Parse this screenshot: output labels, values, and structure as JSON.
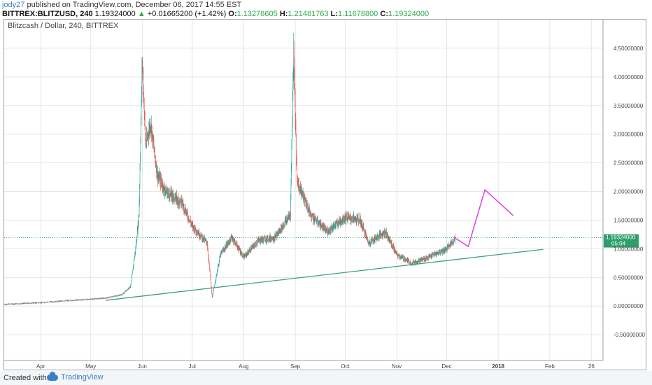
{
  "header": {
    "user": "jody27",
    "published": "published on TradingView.com, December 06, 2017 14:55 EST",
    "symbol": "BITTREX:BLITZUSD, 240",
    "last": "1.19324000",
    "arrow": "▲",
    "change": "+0.01665200 (+1.42%)",
    "o_label": "O:",
    "o_val": "1.13278605",
    "h_label": "H:",
    "h_val": "1.21481763",
    "l_label": "L:",
    "l_val": "1.11678800",
    "c_label": "C:",
    "c_val": "1.19324000"
  },
  "chart_title": "Blitzcash / Dollar, 240, BITTREX",
  "footer": {
    "created": "Created with",
    "brand": "TradingView",
    "brand_icon": "tradingview-cloud-icon"
  },
  "colors": {
    "up": "#26a69a",
    "down": "#e05a4f",
    "trendline": "#3f9e86",
    "projection": "#e23de0",
    "price_tag": "#2e9e6b",
    "grid": "#e6e6e6"
  },
  "chart_data": {
    "type": "candlestick",
    "title": "Blitzcash / Dollar, 240, BITTREX",
    "x_ticks": [
      "Apr",
      "May",
      "Jun",
      "Jul",
      "Aug",
      "Sep",
      "Oct",
      "Nov",
      "Dec",
      "2018",
      "Feb",
      "26"
    ],
    "y_ticks": [
      "4.50000000",
      "4.00000000",
      "3.50000000",
      "3.00000000",
      "2.50000000",
      "2.00000000",
      "1.50000000",
      "1.00000000",
      "0.50000000",
      "0.00000000",
      "-0.50000000"
    ],
    "ylim": [
      -0.95,
      5.0
    ],
    "last_price_label": "1.19324000",
    "countdown_label": "05:04",
    "last_price": 1.19324,
    "price_path": [
      [
        "2017-03-10",
        0.03
      ],
      [
        "2017-04-01",
        0.06
      ],
      [
        "2017-04-15",
        0.09
      ],
      [
        "2017-05-01",
        0.12
      ],
      [
        "2017-05-10",
        0.14
      ],
      [
        "2017-05-20",
        0.2
      ],
      [
        "2017-05-25",
        0.35
      ],
      [
        "2017-05-28",
        1.0
      ],
      [
        "2017-05-30",
        1.6
      ],
      [
        "2017-06-01",
        4.3
      ],
      [
        "2017-06-03",
        2.8
      ],
      [
        "2017-06-06",
        3.2
      ],
      [
        "2017-06-10",
        2.3
      ],
      [
        "2017-06-15",
        2.0
      ],
      [
        "2017-06-25",
        1.8
      ],
      [
        "2017-07-01",
        1.4
      ],
      [
        "2017-07-10",
        1.1
      ],
      [
        "2017-07-13",
        0.15
      ],
      [
        "2017-07-18",
        0.9
      ],
      [
        "2017-07-25",
        1.2
      ],
      [
        "2017-08-01",
        0.85
      ],
      [
        "2017-08-10",
        1.15
      ],
      [
        "2017-08-20",
        1.2
      ],
      [
        "2017-08-29",
        1.6
      ],
      [
        "2017-08-31",
        4.5
      ],
      [
        "2017-09-02",
        2.2
      ],
      [
        "2017-09-10",
        1.6
      ],
      [
        "2017-09-20",
        1.3
      ],
      [
        "2017-10-01",
        1.55
      ],
      [
        "2017-10-10",
        1.5
      ],
      [
        "2017-10-15",
        1.1
      ],
      [
        "2017-10-25",
        1.3
      ],
      [
        "2017-11-01",
        0.9
      ],
      [
        "2017-11-10",
        0.75
      ],
      [
        "2017-11-20",
        0.85
      ],
      [
        "2017-12-01",
        1.0
      ],
      [
        "2017-12-06",
        1.19
      ]
    ],
    "trendline": [
      [
        "2017-05-10",
        0.1
      ],
      [
        "2018-01-28",
        0.99
      ]
    ],
    "projection": [
      [
        "2017-12-06",
        1.19
      ],
      [
        "2017-12-14",
        1.04
      ],
      [
        "2017-12-24",
        2.03
      ],
      [
        "2018-01-10",
        1.58
      ]
    ]
  }
}
